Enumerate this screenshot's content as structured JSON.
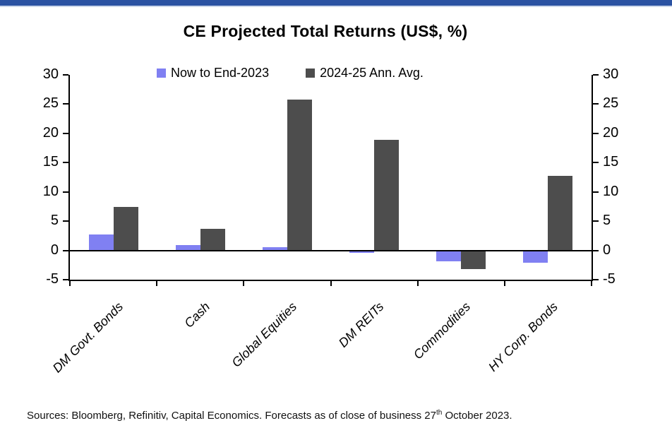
{
  "page": {
    "accent_color": "#2B52A2"
  },
  "chart_data": {
    "type": "bar",
    "title": "CE Projected Total Returns (US$, %)",
    "categories": [
      "DM Govt. Bonds",
      "Cash",
      "Global Equities",
      "DM REITs",
      "Commodities",
      "HY Corp. Bonds"
    ],
    "series": [
      {
        "name": "Now to End-2023",
        "color": "#8080F2",
        "values": [
          2.8,
          1.0,
          0.6,
          -0.4,
          -1.8,
          -2.1
        ]
      },
      {
        "name": "2024-25 Ann. Avg.",
        "color": "#4D4D4D",
        "values": [
          7.5,
          3.8,
          25.8,
          19.0,
          -3.1,
          12.8
        ]
      }
    ],
    "ylim": [
      -5,
      30
    ],
    "yticks": [
      30,
      25,
      20,
      15,
      10,
      5,
      0,
      -5
    ],
    "grid": false,
    "legend_position": "top-center",
    "dual_axis": true,
    "xlabel": "",
    "ylabel": ""
  },
  "footer": {
    "prefix": "Sources: Bloomberg, Refinitiv, Capital Economics. Forecasts as of close of business 27",
    "sup": "th",
    "suffix": " October 2023."
  }
}
